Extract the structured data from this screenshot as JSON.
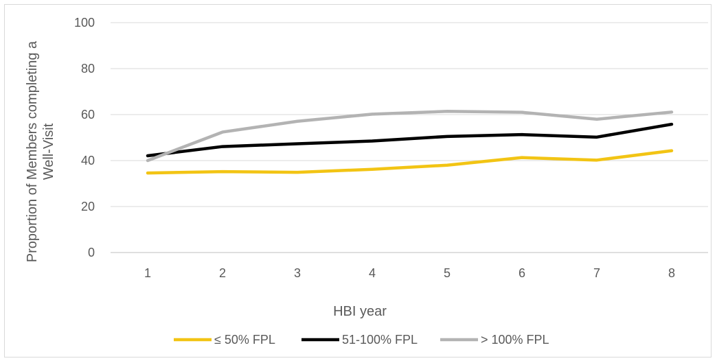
{
  "chart_data": {
    "type": "line",
    "title": "",
    "xlabel": "HBI year",
    "ylabel_lines": [
      "Proportion of Members completing a",
      "Well-Visit"
    ],
    "x": [
      1,
      2,
      3,
      4,
      5,
      6,
      7,
      8
    ],
    "x_tick_labels": [
      "1",
      "2",
      "3",
      "4",
      "5",
      "6",
      "7",
      "8"
    ],
    "ylim": [
      0,
      100
    ],
    "y_ticks": [
      0,
      20,
      40,
      60,
      80,
      100
    ],
    "y_tick_labels": [
      "0",
      "20",
      "40",
      "60",
      "80",
      "100"
    ],
    "grid": "horizontal",
    "legend_position": "bottom",
    "series": [
      {
        "name": "≤ 50% FPL",
        "color": "#f2c414",
        "values": [
          34.6,
          35.2,
          34.9,
          36.2,
          38.0,
          41.3,
          40.2,
          44.3
        ]
      },
      {
        "name": "51-100% FPL",
        "color": "#000000",
        "values": [
          42.1,
          46.1,
          47.3,
          48.5,
          50.5,
          51.3,
          50.2,
          55.8
        ]
      },
      {
        "name": "> 100% FPL",
        "color": "#b3b3b3",
        "values": [
          40.0,
          52.4,
          57.1,
          60.2,
          61.4,
          61.0,
          58.0,
          61.1
        ]
      }
    ]
  }
}
